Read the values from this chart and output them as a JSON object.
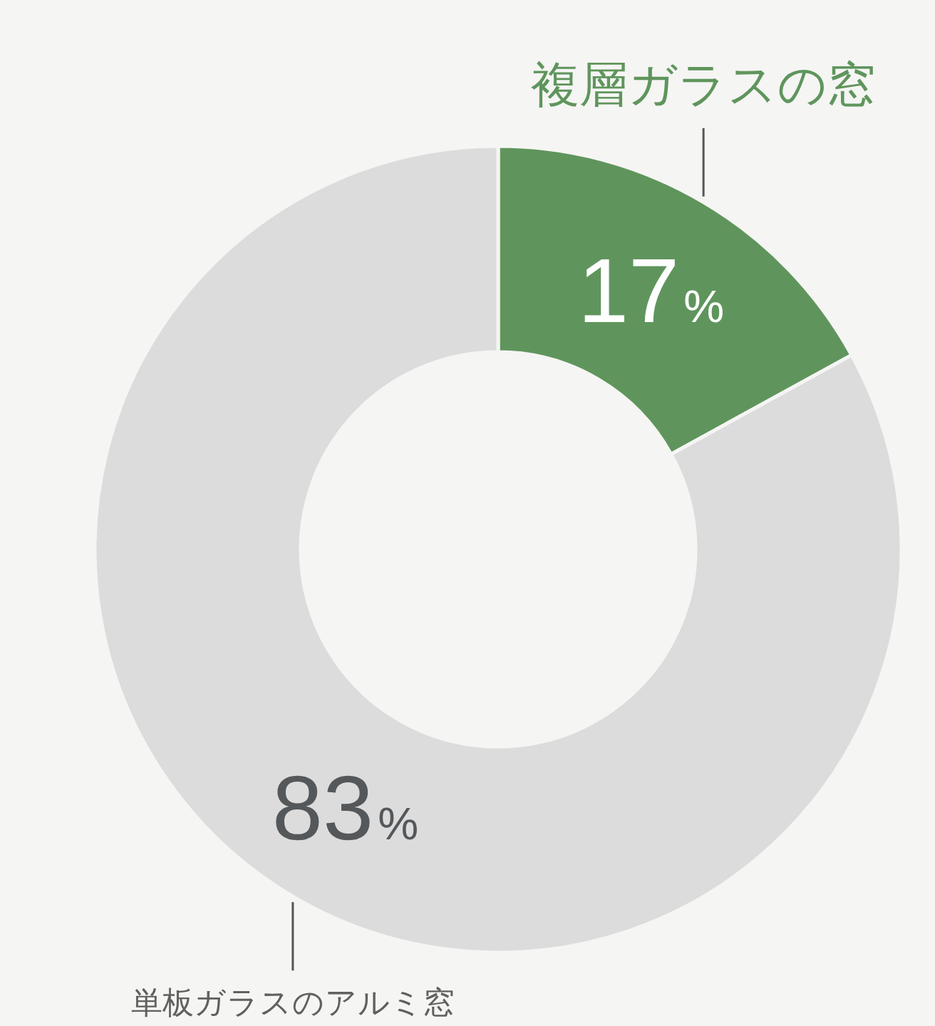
{
  "chart_data": {
    "type": "donut",
    "categories": [
      "複層ガラスの窓",
      "単板ガラスのアルミ窓"
    ],
    "values": [
      17,
      83
    ],
    "colors": [
      "#5f955c",
      "#dcdcdc"
    ],
    "value_labels": [
      "17%",
      "83%"
    ]
  }
}
